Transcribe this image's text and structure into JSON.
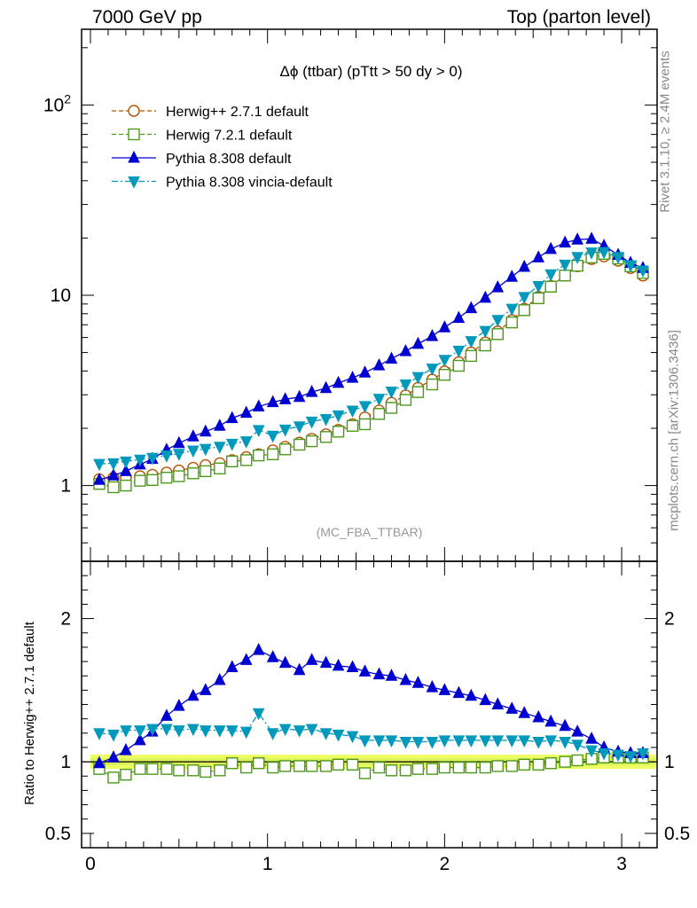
{
  "header": {
    "left": "7000 GeV pp",
    "right": "Top (parton level)"
  },
  "side_labels": {
    "rivet": "Rivet 3.1.10, ≥ 2.4M events",
    "mcplots": "mcplots.cern.ch [arXiv:1306.3436]"
  },
  "chart_data": [
    {
      "type": "line",
      "panel": "main",
      "title": "Δϕ (ttbar) (pTtt > 50 dy > 0)",
      "watermark": "(MC_FBA_TTBAR)",
      "xlabel": "",
      "ylabel": "",
      "xlim": [
        -0.05,
        3.2
      ],
      "ylim": [
        0.4,
        250
      ],
      "yscale": "log",
      "yticks": [
        {
          "value": 100,
          "label": "10²"
        },
        {
          "value": 10,
          "label": "10"
        },
        {
          "value": 1,
          "label": "1"
        }
      ],
      "legend_position": "top-left",
      "x": [
        0.05,
        0.13,
        0.2,
        0.28,
        0.35,
        0.43,
        0.5,
        0.58,
        0.65,
        0.73,
        0.8,
        0.88,
        0.95,
        1.03,
        1.1,
        1.18,
        1.25,
        1.33,
        1.4,
        1.48,
        1.55,
        1.63,
        1.7,
        1.78,
        1.85,
        1.93,
        2.0,
        2.08,
        2.15,
        2.23,
        2.3,
        2.38,
        2.45,
        2.53,
        2.6,
        2.68,
        2.75,
        2.83,
        2.9,
        2.98,
        3.05,
        3.12
      ],
      "series": [
        {
          "name": "Herwig++ 2.7.1 default",
          "color": "#b35000",
          "marker": "open-circle",
          "line": "dashed",
          "values": [
            1.08,
            1.1,
            1.1,
            1.12,
            1.14,
            1.17,
            1.2,
            1.24,
            1.28,
            1.31,
            1.36,
            1.41,
            1.46,
            1.53,
            1.6,
            1.68,
            1.76,
            1.86,
            1.96,
            2.1,
            2.28,
            2.48,
            2.72,
            2.98,
            3.26,
            3.6,
            3.98,
            4.45,
            5.0,
            5.65,
            6.45,
            7.4,
            8.5,
            9.8,
            11.2,
            12.7,
            14.2,
            15.5,
            16.0,
            15.2,
            13.9,
            12.7
          ]
        },
        {
          "name": "Herwig 7.2.1 default",
          "color": "#4c9a1a",
          "marker": "open-square",
          "line": "dashed",
          "values": [
            1.02,
            0.98,
            1.0,
            1.06,
            1.07,
            1.1,
            1.12,
            1.16,
            1.19,
            1.23,
            1.34,
            1.36,
            1.44,
            1.46,
            1.55,
            1.64,
            1.71,
            1.8,
            1.92,
            2.06,
            2.1,
            2.38,
            2.56,
            2.82,
            3.1,
            3.4,
            3.82,
            4.26,
            4.8,
            5.45,
            6.25,
            7.2,
            8.35,
            9.65,
            11.1,
            12.7,
            14.3,
            15.8,
            16.5,
            15.6,
            14.2,
            13.1
          ]
        },
        {
          "name": "Pythia 8.308 default",
          "color": "#0000d0",
          "marker": "filled-triangle-up",
          "line": "solid",
          "values": [
            1.07,
            1.13,
            1.19,
            1.29,
            1.38,
            1.54,
            1.67,
            1.81,
            1.92,
            2.06,
            2.26,
            2.41,
            2.6,
            2.74,
            2.84,
            2.92,
            3.1,
            3.25,
            3.46,
            3.68,
            3.92,
            4.28,
            4.64,
            5.08,
            5.55,
            6.1,
            6.78,
            7.6,
            8.55,
            9.7,
            11.0,
            12.5,
            14.1,
            15.8,
            17.5,
            18.9,
            19.6,
            19.8,
            18.2,
            16.3,
            14.8,
            13.9
          ]
        },
        {
          "name": "Pythia 8.308 vincia-default",
          "color": "#0099bb",
          "marker": "filled-triangle-down",
          "line": "dashdot",
          "values": [
            1.3,
            1.31,
            1.34,
            1.37,
            1.4,
            1.44,
            1.47,
            1.53,
            1.56,
            1.6,
            1.66,
            1.71,
            1.96,
            1.83,
            1.97,
            2.05,
            2.17,
            2.24,
            2.34,
            2.48,
            2.62,
            2.86,
            3.12,
            3.4,
            3.72,
            4.12,
            4.58,
            5.12,
            5.75,
            6.5,
            7.42,
            8.5,
            9.8,
            11.2,
            12.9,
            14.5,
            15.9,
            16.8,
            16.9,
            15.9,
            14.4,
            13.5
          ]
        }
      ]
    },
    {
      "type": "line",
      "panel": "ratio",
      "ylabel": "Ratio to Herwig++ 2.7.1 default",
      "xlim": [
        -0.05,
        3.2
      ],
      "ylim": [
        0.4,
        2.4
      ],
      "yticks": [
        {
          "value": 2,
          "label": "2"
        },
        {
          "value": 1,
          "label": "1"
        },
        {
          "value": 0.5,
          "label": "0.5"
        }
      ],
      "xticks": [
        {
          "value": 0,
          "label": "0"
        },
        {
          "value": 1,
          "label": "1"
        },
        {
          "value": 2,
          "label": "2"
        },
        {
          "value": 3,
          "label": "3"
        }
      ],
      "reference_band": {
        "color": "#eeff66",
        "inner": "#ddf55a",
        "range": [
          0.95,
          1.05
        ]
      },
      "x": [
        0.05,
        0.13,
        0.2,
        0.28,
        0.35,
        0.43,
        0.5,
        0.58,
        0.65,
        0.73,
        0.8,
        0.88,
        0.95,
        1.03,
        1.1,
        1.18,
        1.25,
        1.33,
        1.4,
        1.48,
        1.55,
        1.63,
        1.7,
        1.78,
        1.85,
        1.93,
        2.0,
        2.08,
        2.15,
        2.23,
        2.3,
        2.38,
        2.45,
        2.53,
        2.6,
        2.68,
        2.75,
        2.83,
        2.9,
        2.98,
        3.05,
        3.12
      ],
      "series": [
        {
          "name": "Herwig 7.2.1 default",
          "color": "#4c9a1a",
          "marker": "open-square",
          "line": "dashed",
          "values": [
            0.95,
            0.89,
            0.91,
            0.95,
            0.95,
            0.95,
            0.94,
            0.94,
            0.93,
            0.94,
            0.99,
            0.96,
            0.99,
            0.96,
            0.97,
            0.97,
            0.97,
            0.97,
            0.98,
            0.98,
            0.92,
            0.96,
            0.94,
            0.94,
            0.95,
            0.95,
            0.96,
            0.96,
            0.96,
            0.96,
            0.97,
            0.97,
            0.98,
            0.98,
            0.99,
            1.0,
            1.01,
            1.02,
            1.03,
            1.03,
            1.03,
            1.03
          ]
        },
        {
          "name": "Pythia 8.308 default",
          "color": "#0000d0",
          "marker": "filled-triangle-up",
          "line": "solid",
          "values": [
            0.99,
            1.03,
            1.08,
            1.15,
            1.21,
            1.32,
            1.39,
            1.46,
            1.5,
            1.57,
            1.66,
            1.71,
            1.78,
            1.73,
            1.69,
            1.64,
            1.71,
            1.69,
            1.67,
            1.66,
            1.63,
            1.61,
            1.6,
            1.57,
            1.55,
            1.52,
            1.5,
            1.48,
            1.46,
            1.43,
            1.4,
            1.37,
            1.34,
            1.31,
            1.28,
            1.25,
            1.21,
            1.16,
            1.1,
            1.07,
            1.06,
            1.06
          ]
        },
        {
          "name": "Pythia 8.308 vincia-default",
          "color": "#0099bb",
          "marker": "filled-triangle-down",
          "line": "dashdot",
          "values": [
            1.2,
            1.19,
            1.22,
            1.22,
            1.23,
            1.23,
            1.22,
            1.23,
            1.22,
            1.22,
            1.22,
            1.21,
            1.34,
            1.2,
            1.23,
            1.22,
            1.23,
            1.2,
            1.19,
            1.18,
            1.15,
            1.15,
            1.15,
            1.14,
            1.14,
            1.14,
            1.15,
            1.15,
            1.15,
            1.15,
            1.15,
            1.15,
            1.15,
            1.14,
            1.15,
            1.14,
            1.12,
            1.08,
            1.06,
            1.05,
            1.04,
            1.06
          ]
        }
      ]
    }
  ]
}
